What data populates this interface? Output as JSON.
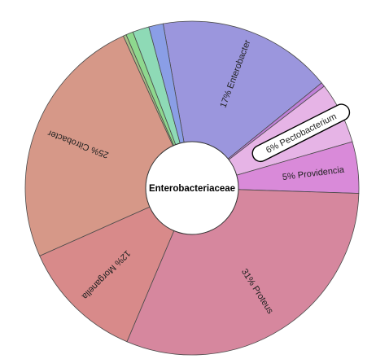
{
  "chart_data": {
    "type": "pie",
    "center_label": "Enterobacteriaceae",
    "slices": [
      {
        "label": "Enterobacter",
        "value": 17,
        "value_label": "17%",
        "color": "#9b96dd"
      },
      {
        "label": "",
        "value": 0.4,
        "value_label": "",
        "color": "#c080d8"
      },
      {
        "label": "Pectobacterium",
        "value": 6,
        "value_label": "6%",
        "color": "#e6b4e6",
        "highlighted": true
      },
      {
        "label": "Providencia",
        "value": 5,
        "value_label": "5%",
        "color": "#d98ad9"
      },
      {
        "label": "Proteus",
        "value": 31,
        "value_label": "31%",
        "color": "#d6879e"
      },
      {
        "label": "Morganella",
        "value": 12,
        "value_label": "12%",
        "color": "#d88a8a"
      },
      {
        "label": "Citrobacter",
        "value": 25,
        "value_label": "25%",
        "color": "#d69888"
      },
      {
        "label": "",
        "value": 0.3,
        "value_label": "",
        "color": "#a8c088"
      },
      {
        "label": "",
        "value": 0.7,
        "value_label": "",
        "color": "#8ed88e"
      },
      {
        "label": "",
        "value": 1.6,
        "value_label": "",
        "color": "#8edab6"
      },
      {
        "label": "",
        "value": 1.4,
        "value_label": "",
        "color": "#8a9ee6"
      }
    ]
  }
}
